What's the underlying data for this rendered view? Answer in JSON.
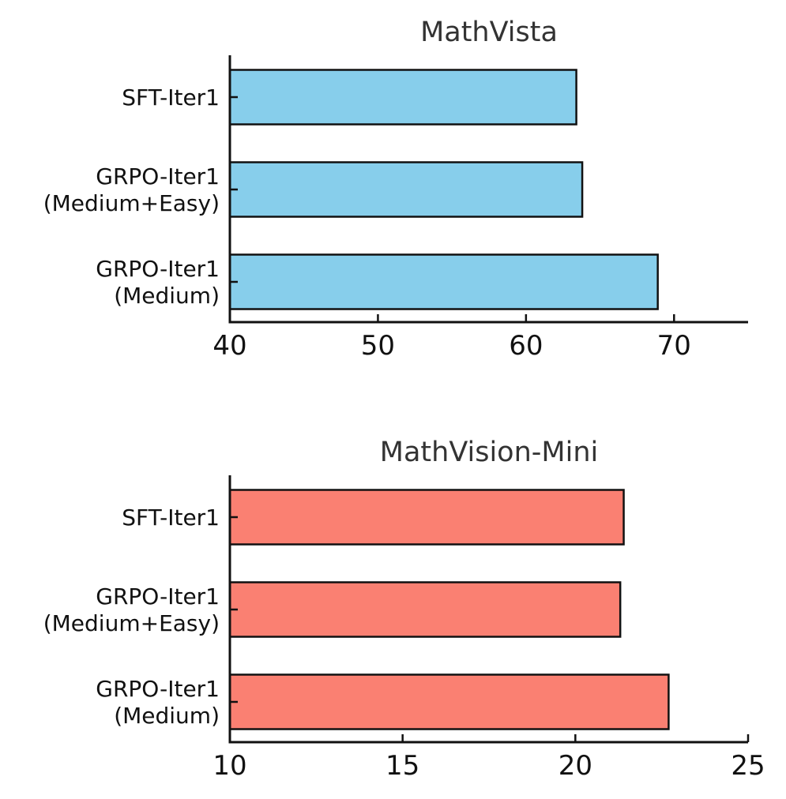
{
  "chart_data": [
    {
      "type": "bar",
      "orientation": "horizontal",
      "title": "MathVista",
      "categories": [
        "SFT-Iter1",
        "GRPO-Iter1\n(Medium+Easy)",
        "GRPO-Iter1\n(Medium)"
      ],
      "values": [
        63.4,
        63.8,
        68.9
      ],
      "xlim": [
        40,
        75
      ],
      "xticks": [
        40,
        50,
        60,
        70
      ],
      "xlabel": "",
      "ylabel": "",
      "bar_color": "#87CEEB",
      "grid": false
    },
    {
      "type": "bar",
      "orientation": "horizontal",
      "title": "MathVision-Mini",
      "categories": [
        "SFT-Iter1",
        "GRPO-Iter1\n(Medium+Easy)",
        "GRPO-Iter1\n(Medium)"
      ],
      "values": [
        21.4,
        21.3,
        22.7
      ],
      "xlim": [
        10,
        25
      ],
      "xticks": [
        10,
        15,
        20,
        25
      ],
      "xlabel": "",
      "ylabel": "",
      "bar_color": "#FA8072",
      "grid": false
    }
  ]
}
